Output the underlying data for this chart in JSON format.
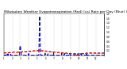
{
  "title": "Milwaukee Weather Evapotranspiration (Red) (vs) Rain per Day (Blue) (Inches)",
  "title_fontsize": 3.2,
  "figsize": [
    1.6,
    0.87
  ],
  "dpi": 100,
  "background_color": "#ffffff",
  "red_color": "#cc0000",
  "blue_color": "#0000cc",
  "ylim": [
    0,
    1.8
  ],
  "ytick_values": [
    0.2,
    0.4,
    0.6,
    0.8,
    1.0,
    1.2,
    1.4,
    1.6,
    1.8
  ],
  "num_days": 365,
  "month_starts": [
    0,
    31,
    59,
    90,
    120,
    151,
    181,
    212,
    243,
    273,
    304,
    334
  ],
  "month_labels": [
    "1",
    "2",
    "3",
    "4",
    "5",
    "6",
    "7",
    "8",
    "9",
    "10",
    "11",
    "12"
  ],
  "rain_data": [
    0,
    0,
    0,
    0,
    0,
    0,
    0,
    0,
    0,
    0,
    0.05,
    0,
    0,
    0,
    0,
    0.06,
    0,
    0,
    0,
    0,
    0,
    0,
    0,
    0,
    0,
    0.04,
    0,
    0,
    0,
    0,
    0,
    0,
    0,
    0,
    0,
    0,
    0,
    0,
    0,
    0,
    0,
    0,
    0,
    0,
    0,
    0,
    0,
    0,
    0,
    0,
    0,
    0,
    0,
    0,
    0,
    0,
    0,
    0,
    0.3,
    0.38,
    0.42,
    0.32,
    0.18,
    0.08,
    0,
    0,
    0,
    0,
    0,
    0,
    0,
    0,
    0,
    0,
    0,
    0,
    0,
    0,
    0,
    0,
    0,
    0,
    0,
    0,
    0,
    0,
    0,
    0,
    0,
    0,
    0.07,
    0,
    0,
    0,
    0,
    0,
    0,
    0,
    0,
    0,
    0,
    0,
    0,
    0,
    0,
    0,
    0,
    0,
    0,
    0,
    0,
    0,
    0,
    0,
    0,
    0,
    0,
    0,
    0,
    0,
    0,
    0,
    0,
    0,
    0,
    0,
    0,
    0,
    0.55,
    1.15,
    1.7,
    1.05,
    0.42,
    0.15,
    0,
    0,
    0,
    0,
    0,
    0,
    0,
    0,
    0,
    0,
    0,
    0,
    0,
    0,
    0,
    0,
    0.08,
    0,
    0,
    0,
    0,
    0,
    0,
    0,
    0,
    0,
    0.06,
    0,
    0,
    0,
    0,
    0,
    0,
    0,
    0,
    0,
    0,
    0,
    0,
    0,
    0,
    0,
    0,
    0,
    0,
    0,
    0.1,
    0,
    0,
    0,
    0,
    0,
    0,
    0,
    0,
    0,
    0,
    0,
    0,
    0,
    0,
    0,
    0,
    0,
    0,
    0,
    0,
    0,
    0,
    0,
    0,
    0,
    0,
    0,
    0,
    0,
    0.09,
    0,
    0,
    0,
    0,
    0,
    0,
    0,
    0,
    0,
    0.07,
    0,
    0,
    0,
    0,
    0,
    0,
    0,
    0,
    0,
    0,
    0,
    0,
    0,
    0,
    0,
    0,
    0,
    0,
    0,
    0.08,
    0,
    0,
    0,
    0,
    0,
    0,
    0,
    0,
    0,
    0,
    0,
    0,
    0,
    0,
    0,
    0,
    0,
    0,
    0,
    0.06,
    0,
    0,
    0,
    0,
    0,
    0,
    0,
    0,
    0,
    0,
    0,
    0,
    0,
    0,
    0,
    0,
    0,
    0,
    0,
    0.07,
    0,
    0,
    0,
    0,
    0,
    0,
    0,
    0,
    0,
    0,
    0,
    0,
    0,
    0,
    0,
    0,
    0,
    0,
    0,
    0.09,
    0,
    0,
    0,
    0,
    0,
    0,
    0,
    0,
    0,
    0,
    0,
    0,
    0,
    0,
    0,
    0,
    0,
    0,
    0,
    0,
    0,
    0,
    0,
    0,
    0,
    0,
    0,
    0,
    0,
    0,
    0,
    0,
    0,
    0,
    0,
    0,
    0,
    0,
    0,
    0,
    0,
    0,
    0,
    0,
    0,
    0,
    0,
    0,
    0,
    0,
    0,
    0,
    0,
    0,
    0,
    0,
    0,
    0,
    0,
    0,
    0,
    0,
    0,
    0
  ],
  "et_data": [
    0.1,
    0.09,
    0.1,
    0.11,
    0.1,
    0.09,
    0.1,
    0.11,
    0.1,
    0.1,
    0.11,
    0.1,
    0.09,
    0.1,
    0.11,
    0.12,
    0.11,
    0.1,
    0.11,
    0.12,
    0.12,
    0.11,
    0.1,
    0.11,
    0.12,
    0.13,
    0.12,
    0.11,
    0.12,
    0.13,
    0.13,
    0.12,
    0.11,
    0.12,
    0.13,
    0.14,
    0.13,
    0.12,
    0.13,
    0.14,
    0.14,
    0.13,
    0.12,
    0.13,
    0.14,
    0.13,
    0.12,
    0.13,
    0.14,
    0.13,
    0.12,
    0.13,
    0.14,
    0.13,
    0.12,
    0.13,
    0.14,
    0.13,
    0.14,
    0.15,
    0.14,
    0.13,
    0.14,
    0.15,
    0.14,
    0.13,
    0.14,
    0.15,
    0.16,
    0.15,
    0.14,
    0.15,
    0.16,
    0.15,
    0.14,
    0.15,
    0.16,
    0.15,
    0.14,
    0.15,
    0.16,
    0.15,
    0.14,
    0.15,
    0.16,
    0.15,
    0.16,
    0.17,
    0.16,
    0.15,
    0.16,
    0.17,
    0.18,
    0.17,
    0.16,
    0.17,
    0.18,
    0.17,
    0.16,
    0.17,
    0.18,
    0.17,
    0.18,
    0.19,
    0.18,
    0.17,
    0.18,
    0.19,
    0.2,
    0.19,
    0.18,
    0.19,
    0.2,
    0.19,
    0.18,
    0.19,
    0.2,
    0.21,
    0.2,
    0.19,
    0.18,
    0.19,
    0.2,
    0.21,
    0.2,
    0.19,
    0.2,
    0.21,
    0.2,
    0.19,
    0.18,
    0.19,
    0.2,
    0.19,
    0.18,
    0.19,
    0.2,
    0.19,
    0.18,
    0.19,
    0.18,
    0.19,
    0.2,
    0.19,
    0.18,
    0.19,
    0.2,
    0.19,
    0.18,
    0.19,
    0.18,
    0.17,
    0.18,
    0.17,
    0.16,
    0.17,
    0.18,
    0.17,
    0.16,
    0.17,
    0.16,
    0.15,
    0.16,
    0.15,
    0.16,
    0.15,
    0.14,
    0.15,
    0.16,
    0.15,
    0.14,
    0.15,
    0.14,
    0.13,
    0.14,
    0.15,
    0.14,
    0.13,
    0.14,
    0.15,
    0.14,
    0.13,
    0.14,
    0.13,
    0.12,
    0.13,
    0.14,
    0.13,
    0.12,
    0.13,
    0.12,
    0.11,
    0.12,
    0.13,
    0.12,
    0.11,
    0.12,
    0.13,
    0.12,
    0.11,
    0.12,
    0.11,
    0.1,
    0.11,
    0.12,
    0.11,
    0.1,
    0.11,
    0.1,
    0.09,
    0.1,
    0.11,
    0.1,
    0.09,
    0.1,
    0.11,
    0.1,
    0.09,
    0.1,
    0.09,
    0.08,
    0.09,
    0.1,
    0.09,
    0.08,
    0.09,
    0.1,
    0.09,
    0.08,
    0.09,
    0.08,
    0.07,
    0.08,
    0.09,
    0.08,
    0.07,
    0.08,
    0.07,
    0.06,
    0.07,
    0.08,
    0.07,
    0.06,
    0.07,
    0.08,
    0.07,
    0.06,
    0.07,
    0.06,
    0.05,
    0.06,
    0.07,
    0.06,
    0.05,
    0.06,
    0.07,
    0.06,
    0.05,
    0.06,
    0.05,
    0.06,
    0.07,
    0.06,
    0.05,
    0.06,
    0.07,
    0.06,
    0.05,
    0.06,
    0.05,
    0.06,
    0.05,
    0.06,
    0.07,
    0.06,
    0.05,
    0.06,
    0.07,
    0.06,
    0.07,
    0.06,
    0.05,
    0.06,
    0.07,
    0.06,
    0.07,
    0.08,
    0.07,
    0.06,
    0.07,
    0.06,
    0.07,
    0.08,
    0.07,
    0.06,
    0.07,
    0.08,
    0.07,
    0.08,
    0.09,
    0.08,
    0.09,
    0.1,
    0.09,
    0.08,
    0.09,
    0.1,
    0.09,
    0.1,
    0.09,
    0.08,
    0.09,
    0.1,
    0.09,
    0.1,
    0.09,
    0.1,
    0.09,
    0.08,
    0.09,
    0.1,
    0.09,
    0.1,
    0.09,
    0.08,
    0.09,
    0.1,
    0.09,
    0.08,
    0.09,
    0.1,
    0.09,
    0.1,
    0.09,
    0.08,
    0.09,
    0.1,
    0.09,
    0.1,
    0.09,
    0.08,
    0.09,
    0.1,
    0.09,
    0.1,
    0.09,
    0.1,
    0.09,
    0.08,
    0.09,
    0.1,
    0.09,
    0.08,
    0.09,
    0.1,
    0.09,
    0.1,
    0.09,
    0.08,
    0.09,
    0.1,
    0.09,
    0.1,
    0.09,
    0.1
  ]
}
